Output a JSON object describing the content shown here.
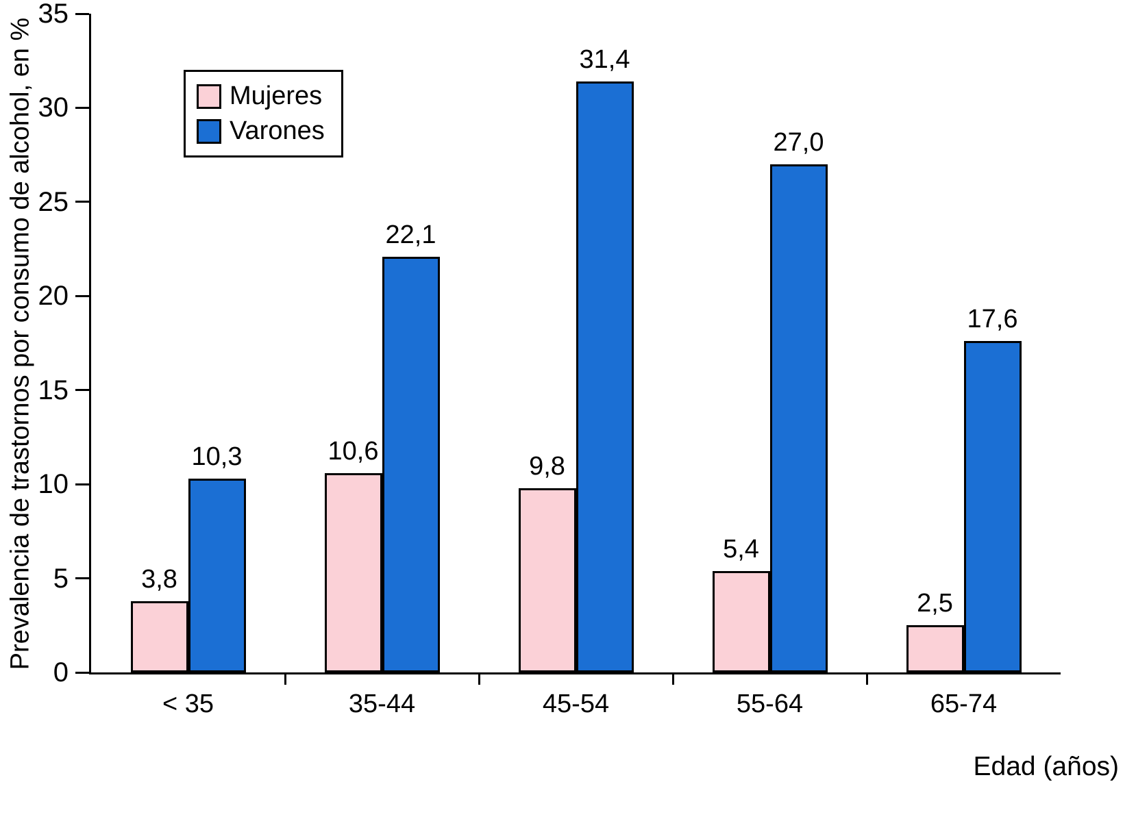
{
  "chart_data": {
    "type": "bar",
    "title": "",
    "categories": [
      "< 35",
      "35-44",
      "45-54",
      "55-64",
      "65-74"
    ],
    "series": [
      {
        "name": "Mujeres",
        "color": "#FBD1D7",
        "values": [
          3.8,
          10.6,
          9.8,
          5.4,
          2.5
        ]
      },
      {
        "name": "Varones",
        "color": "#1B6FD4",
        "values": [
          10.3,
          22.1,
          31.4,
          27.0,
          17.6
        ]
      }
    ],
    "value_labels": {
      "Mujeres": [
        "3,8",
        "10,6",
        "9,8",
        "5,4",
        "2,5"
      ],
      "Varones": [
        "10,3",
        "22,1",
        "31,4",
        "27,0",
        "17,6"
      ]
    },
    "xlabel": "Edad (años)",
    "ylabel": "Prevalencia de trastornos por consumo de alcohol, en %",
    "ylim": [
      0,
      35
    ],
    "yticks": [
      0,
      5,
      10,
      15,
      20,
      25,
      30,
      35
    ],
    "grid": false,
    "legend_position": "top-left",
    "decimal_separator": ","
  }
}
